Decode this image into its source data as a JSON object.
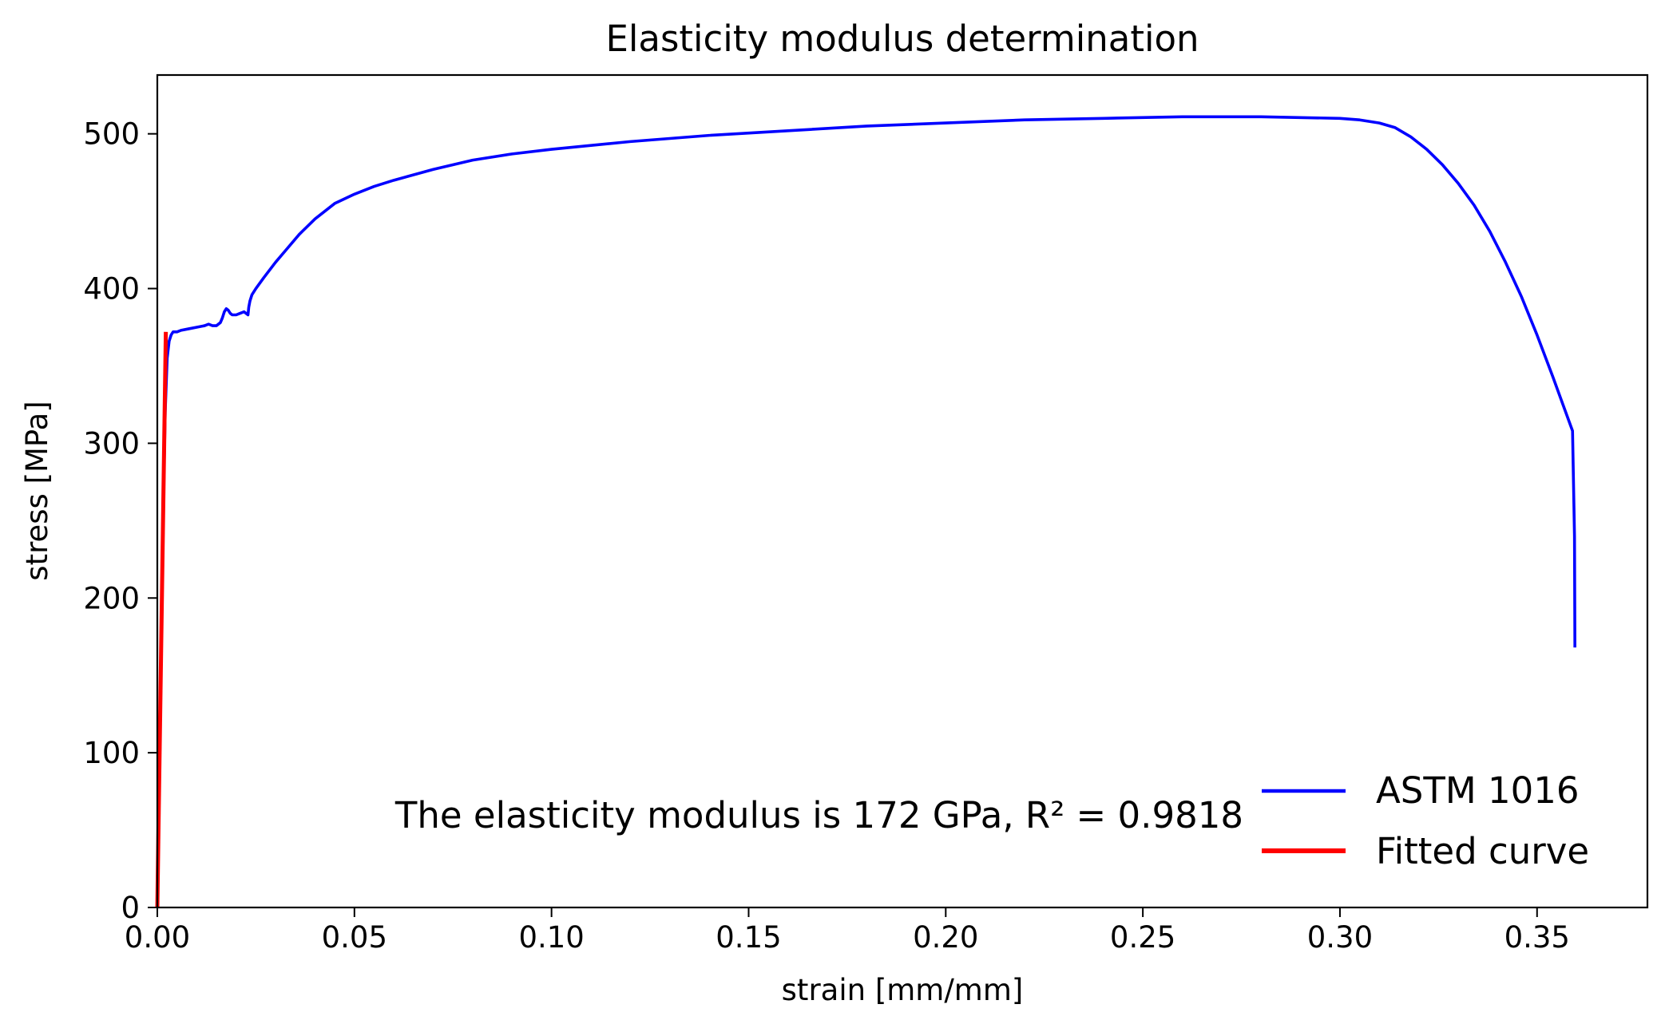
{
  "chart_data": {
    "type": "line",
    "title": "Elasticity modulus determination",
    "xlabel": "strain [mm/mm]",
    "ylabel": "stress [MPa]",
    "xlim": [
      0.0,
      0.378
    ],
    "ylim": [
      0,
      538
    ],
    "xticks": [
      0.0,
      0.05,
      0.1,
      0.15,
      0.2,
      0.25,
      0.3,
      0.35
    ],
    "xtick_labels": [
      "0.00",
      "0.05",
      "0.10",
      "0.15",
      "0.20",
      "0.25",
      "0.30",
      "0.35"
    ],
    "yticks": [
      0,
      100,
      200,
      300,
      400,
      500
    ],
    "ytick_labels": [
      "0",
      "100",
      "200",
      "300",
      "400",
      "500"
    ],
    "grid": false,
    "legend_position": "bottom-right",
    "annotation": "The elasticity modulus is 172 GPa, R² = 0.9818",
    "series": [
      {
        "name": "ASTM 1016",
        "color": "#0000ff",
        "x": [
          0.0,
          0.0005,
          0.001,
          0.0015,
          0.002,
          0.0025,
          0.003,
          0.0035,
          0.004,
          0.005,
          0.006,
          0.008,
          0.01,
          0.012,
          0.013,
          0.014,
          0.015,
          0.016,
          0.0165,
          0.017,
          0.0175,
          0.018,
          0.0185,
          0.019,
          0.0195,
          0.02,
          0.021,
          0.022,
          0.0225,
          0.023,
          0.0232,
          0.0235,
          0.024,
          0.025,
          0.027,
          0.03,
          0.033,
          0.036,
          0.04,
          0.045,
          0.05,
          0.055,
          0.06,
          0.07,
          0.08,
          0.09,
          0.1,
          0.12,
          0.14,
          0.16,
          0.18,
          0.2,
          0.22,
          0.24,
          0.26,
          0.28,
          0.3,
          0.305,
          0.31,
          0.314,
          0.318,
          0.322,
          0.326,
          0.33,
          0.334,
          0.338,
          0.342,
          0.346,
          0.35,
          0.354,
          0.357,
          0.359,
          0.3595,
          0.3596
        ],
        "y": [
          0,
          85,
          170,
          255,
          320,
          355,
          366,
          370,
          372,
          372,
          373,
          374,
          375,
          376,
          377,
          376,
          376,
          378,
          381,
          385,
          387,
          386,
          384,
          383,
          383,
          383,
          384,
          385,
          384,
          383,
          388,
          392,
          396,
          400,
          407,
          417,
          426,
          435,
          445,
          455,
          461,
          466,
          470,
          477,
          483,
          487,
          490,
          495,
          499,
          502,
          505,
          507,
          509,
          510,
          511,
          511,
          510,
          509,
          507,
          504,
          498,
          490,
          480,
          468,
          454,
          437,
          417,
          395,
          370,
          343,
          322,
          308,
          240,
          168
        ]
      },
      {
        "name": "Fitted curve",
        "color": "#ff0000",
        "x": [
          0.0,
          0.00216
        ],
        "y": [
          0,
          372
        ]
      }
    ]
  }
}
